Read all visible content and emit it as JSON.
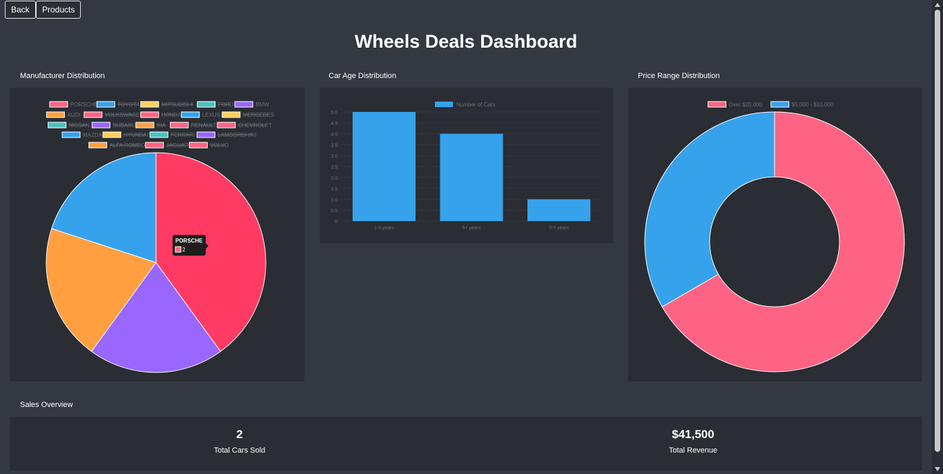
{
  "nav": {
    "back_label": "Back",
    "products_label": "Products"
  },
  "page": {
    "title": "Wheels Deals Dashboard"
  },
  "sections": {
    "manufacturer": "Manufacturer Distribution",
    "age": "Car Age Distribution",
    "price": "Price Range Distribution",
    "sales": "Sales Overview"
  },
  "tooltip": {
    "title": "PORSCHE",
    "value": "2"
  },
  "chart_data": [
    {
      "type": "pie",
      "legend": [
        {
          "label": "PORSCHE",
          "color": "#ff6384",
          "hidden": false
        },
        {
          "label": "TOYOTA",
          "color": "#36a2eb",
          "hidden": true
        },
        {
          "label": "MITSUBISHI",
          "color": "#ffce56",
          "hidden": true
        },
        {
          "label": "FORD",
          "color": "#4bc0c0",
          "hidden": true
        },
        {
          "label": "BMW",
          "color": "#9966ff",
          "hidden": false
        },
        {
          "label": "AUDI",
          "color": "#ff9f40",
          "hidden": false
        },
        {
          "label": "VOLKSWAGEN",
          "color": "#ff6384",
          "hidden": true
        },
        {
          "label": "HONDA",
          "color": "#ff6384",
          "hidden": true
        },
        {
          "label": "LEXUS",
          "color": "#36a2eb",
          "hidden": false
        },
        {
          "label": "MERCEDES",
          "color": "#ffce56",
          "hidden": true
        },
        {
          "label": "NISSAN",
          "color": "#4bc0c0",
          "hidden": true
        },
        {
          "label": "SUBARU",
          "color": "#9966ff",
          "hidden": true
        },
        {
          "label": "KIA",
          "color": "#ff9f40",
          "hidden": true
        },
        {
          "label": "RENAULT",
          "color": "#ff6384",
          "hidden": true
        },
        {
          "label": "CHEVROLET",
          "color": "#ff6384",
          "hidden": true
        },
        {
          "label": "MAZDA",
          "color": "#36a2eb",
          "hidden": false
        },
        {
          "label": "HYUNDAI",
          "color": "#ffce56",
          "hidden": true
        },
        {
          "label": "FERRARI",
          "color": "#4bc0c0",
          "hidden": true
        },
        {
          "label": "LAMBORGHINI",
          "color": "#9966ff",
          "hidden": true
        },
        {
          "label": "ALFA ROMEO",
          "color": "#ff9f40",
          "hidden": true
        },
        {
          "label": "JAGUAR",
          "color": "#ff6384",
          "hidden": true
        },
        {
          "label": "VOLVO",
          "color": "#ff6384",
          "hidden": true
        }
      ],
      "slices": [
        {
          "label": "PORSCHE",
          "value": 2,
          "color": "#ff3b63"
        },
        {
          "label": "BMW",
          "value": 1,
          "color": "#9966ff"
        },
        {
          "label": "AUDI",
          "value": 1,
          "color": "#ff9f40"
        },
        {
          "label": "LEXUS",
          "value": 1,
          "color": "#36a2eb"
        },
        {
          "label": "MAZDA",
          "value": 0,
          "color": "#36a2eb"
        }
      ]
    },
    {
      "type": "bar",
      "categories": [
        "1-3 years",
        "5+ years",
        "3-5 years"
      ],
      "series": [
        {
          "name": "Number of Cars",
          "values": [
            5,
            4,
            1
          ],
          "color": "#36a2eb"
        }
      ],
      "ylim": [
        0,
        5
      ],
      "yticks": [
        "0",
        "0.5",
        "1.0",
        "1.5",
        "2.0",
        "2.5",
        "3.0",
        "3.5",
        "4.0",
        "4.5",
        "5.0"
      ]
    },
    {
      "type": "pie",
      "subtype": "doughnut",
      "legend": [
        {
          "label": "Over $20,000",
          "color": "#ff6384"
        },
        {
          "label": "$5,000 - $10,000",
          "color": "#36a2eb"
        }
      ],
      "slices": [
        {
          "label": "Over $20,000",
          "value": 2,
          "color": "#ff6384"
        },
        {
          "label": "$5,000 - $10,000",
          "value": 1,
          "color": "#36a2eb"
        }
      ]
    }
  ],
  "stats": {
    "cars_sold_value": "2",
    "cars_sold_label": "Total Cars Sold",
    "revenue_value": "$41,500",
    "revenue_label": "Total Revenue"
  }
}
